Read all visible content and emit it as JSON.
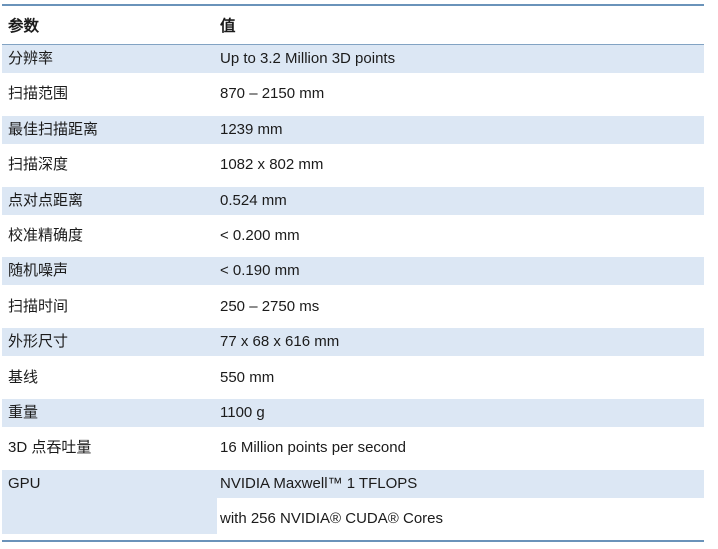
{
  "colors": {
    "row_shade": "#dce7f4",
    "table_border": "#6a93ba",
    "header_rule": "#82a3c3",
    "text": "#1b1b1b"
  },
  "table": {
    "columns": {
      "param": "参数",
      "value": "值"
    },
    "rows": [
      {
        "label": "分辨率",
        "value": "Up to 3.2 Million 3D points"
      },
      {
        "label": "扫描范围",
        "value": "870 – 2150 mm"
      },
      {
        "label": "最佳扫描距离",
        "value": "1239 mm"
      },
      {
        "label": "扫描深度",
        "value": "1082 x 802 mm"
      },
      {
        "label": "点对点距离",
        "value": "0.524 mm"
      },
      {
        "label": "校准精确度",
        "value": "< 0.200 mm"
      },
      {
        "label": "随机噪声",
        "value": "< 0.190 mm"
      },
      {
        "label": "扫描时间",
        "value": "250 – 2750 ms"
      },
      {
        "label": "外形尺寸",
        "value": "77 x 68 x 616 mm"
      },
      {
        "label": "基线",
        "value": "550 mm"
      },
      {
        "label": "重量",
        "value": "1100 g"
      },
      {
        "label": "3D 点吞吐量",
        "value": "16 Million points per second"
      },
      {
        "label": "GPU",
        "value": "NVIDIA Maxwell™ 1 TFLOPS",
        "value2": "with 256 NVIDIA® CUDA® Cores"
      }
    ]
  }
}
